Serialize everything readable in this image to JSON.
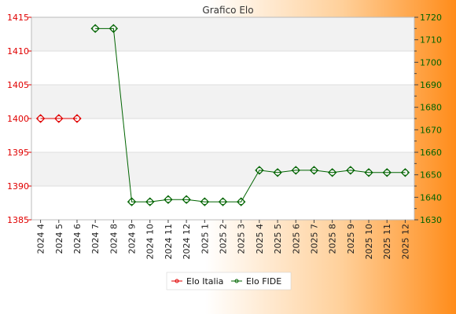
{
  "chart_data": {
    "type": "line",
    "title": "Grafico Elo",
    "categories": [
      "2024 4",
      "2024 5",
      "2024 6",
      "2024 7",
      "2024 8",
      "2024 9",
      "2024 10",
      "2024 11",
      "2024 12",
      "2025 1",
      "2025 2",
      "2025 3",
      "2025 4",
      "2025 5",
      "2025 6",
      "2025 7",
      "2025 8",
      "2025 9",
      "2025 10",
      "2025 11",
      "2025 12"
    ],
    "y_left": {
      "range": [
        1385,
        1415
      ],
      "ticks": [
        1385,
        1390,
        1395,
        1400,
        1405,
        1410,
        1415
      ],
      "color": "#e00000"
    },
    "y_right": {
      "range": [
        1630,
        1720
      ],
      "ticks": [
        1630,
        1640,
        1650,
        1660,
        1670,
        1680,
        1690,
        1700,
        1710,
        1720
      ],
      "color": "#006400"
    },
    "grid": true,
    "legend": "bottom-center",
    "series": [
      {
        "name": "Elo Italia",
        "axis": "left",
        "color": "#e00000",
        "values": [
          1400,
          1400,
          1400,
          null,
          null,
          null,
          null,
          null,
          null,
          null,
          null,
          null,
          null,
          null,
          null,
          null,
          null,
          null,
          null,
          null,
          null
        ]
      },
      {
        "name": "Elo FIDE",
        "axis": "right",
        "color": "#006400",
        "values": [
          null,
          null,
          null,
          1715,
          1715,
          1638,
          1638,
          1639,
          1639,
          1638,
          1638,
          1638,
          1652,
          1651,
          1652,
          1652,
          1651,
          1652,
          1651,
          1651,
          1651
        ]
      }
    ]
  }
}
